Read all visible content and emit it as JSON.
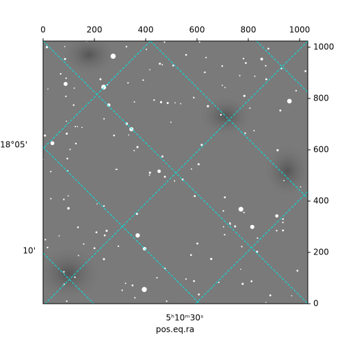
{
  "chart_data": {
    "type": "image",
    "xlabel": "pos.eq.ra",
    "xlim": [
      0,
      1032
    ],
    "ylim": [
      0,
      1024
    ],
    "xticks": [
      0,
      200,
      400,
      600,
      800,
      1000
    ],
    "yticks": [
      0,
      200,
      400,
      600,
      800,
      1000
    ],
    "ra_ticks": [
      "5ʰ10ᵐ30ˢ"
    ],
    "dec_ticks": [
      "18°05'",
      "10'"
    ],
    "grid": true
  }
}
